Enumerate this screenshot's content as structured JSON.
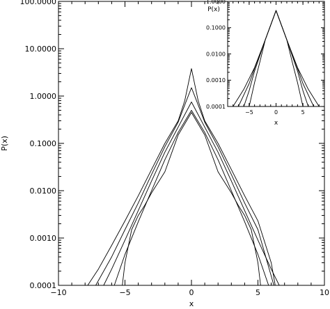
{
  "chart_data": [
    {
      "type": "line",
      "panel": "main",
      "xlabel": "x",
      "ylabel": "P(x)",
      "xlim": [
        -10,
        10
      ],
      "ylim": [
        0.0001,
        100
      ],
      "yscale": "log",
      "x_ticks": [
        "−10",
        "−5",
        "0",
        "5",
        "10"
      ],
      "y_ticks": [
        "0.0001",
        "0.0010",
        "0.0100",
        "0.1000",
        "1.0000",
        "10.0000",
        "100.0000"
      ],
      "series": [
        {
          "x": [
            -7.8,
            -7,
            -6,
            -5,
            -4,
            -3,
            -2,
            -1,
            -0.5,
            0,
            0.5,
            1,
            2,
            3,
            4,
            5,
            6,
            6.3
          ],
          "y": [
            0.0001,
            0.00022,
            0.0007,
            0.0023,
            0.0078,
            0.028,
            0.1,
            0.3,
            0.8,
            3.8,
            0.8,
            0.3,
            0.1,
            0.028,
            0.0078,
            0.0023,
            0.0003,
            0.0001
          ]
        },
        {
          "x": [
            -7.2,
            -6,
            -5,
            -4,
            -3,
            -2,
            -1,
            -0.5,
            0,
            0.5,
            1,
            2,
            3,
            4,
            5,
            6.2
          ],
          "y": [
            0.0001,
            0.0004,
            0.0015,
            0.0055,
            0.022,
            0.085,
            0.28,
            0.65,
            1.5,
            0.65,
            0.28,
            0.085,
            0.022,
            0.0055,
            0.0015,
            0.0001
          ]
        },
        {
          "x": [
            -6.6,
            -6,
            -5,
            -4,
            -3,
            -2,
            -1,
            0,
            1,
            2,
            3,
            4,
            5,
            6,
            6.6
          ],
          "y": [
            0.0001,
            0.00022,
            0.0009,
            0.0038,
            0.016,
            0.065,
            0.22,
            0.75,
            0.22,
            0.065,
            0.016,
            0.0038,
            0.0009,
            0.00022,
            0.0001
          ]
        },
        {
          "x": [
            -5.8,
            -5,
            -4,
            -3,
            -2,
            -1,
            0,
            1,
            2,
            3,
            4,
            5,
            5.8
          ],
          "y": [
            0.0001,
            0.00045,
            0.0022,
            0.01,
            0.045,
            0.17,
            0.5,
            0.17,
            0.045,
            0.01,
            0.0022,
            0.00045,
            0.0001
          ]
        },
        {
          "x": [
            -5.2,
            -5,
            -4.5,
            -4,
            -3.5,
            -3,
            -2,
            -1,
            0,
            1,
            2,
            3,
            3.5,
            4,
            4.5,
            5,
            5.2
          ],
          "y": [
            0.0001,
            0.0003,
            0.0015,
            0.003,
            0.005,
            0.009,
            0.025,
            0.15,
            0.45,
            0.15,
            0.025,
            0.009,
            0.005,
            0.003,
            0.0015,
            0.0003,
            0.0001
          ]
        }
      ]
    },
    {
      "type": "line",
      "panel": "inset",
      "title": "P(x)",
      "xlabel": "x",
      "xlim": [
        -9,
        9
      ],
      "ylim": [
        0.0001,
        1
      ],
      "yscale": "log",
      "x_ticks": [
        "−5",
        "0",
        "5"
      ],
      "y_ticks": [
        "0.0001",
        "0.0010",
        "0.0100",
        "0.1000",
        "1.0000"
      ],
      "series": [
        {
          "x": [
            -8,
            -6,
            -4,
            -2,
            0,
            2,
            4,
            6,
            8
          ],
          "y": [
            0.0001,
            0.00045,
            0.003,
            0.035,
            0.45,
            0.035,
            0.003,
            0.00045,
            0.0001
          ]
        },
        {
          "x": [
            -7,
            -5,
            -4,
            -2,
            0,
            2,
            4,
            5,
            7
          ],
          "y": [
            0.0001,
            0.00075,
            0.0028,
            0.035,
            0.45,
            0.035,
            0.0028,
            0.00075,
            0.0001
          ]
        },
        {
          "x": [
            -6,
            -5,
            -4,
            -2,
            0,
            2,
            4,
            5,
            6
          ],
          "y": [
            0.0001,
            0.0004,
            0.0022,
            0.035,
            0.45,
            0.035,
            0.0022,
            0.0004,
            0.0001
          ]
        },
        {
          "x": [
            -5,
            -4,
            -3,
            -2,
            0,
            2,
            3,
            4,
            5
          ],
          "y": [
            0.0001,
            0.0008,
            0.005,
            0.035,
            0.45,
            0.035,
            0.005,
            0.0008,
            0.0001
          ]
        }
      ]
    }
  ]
}
